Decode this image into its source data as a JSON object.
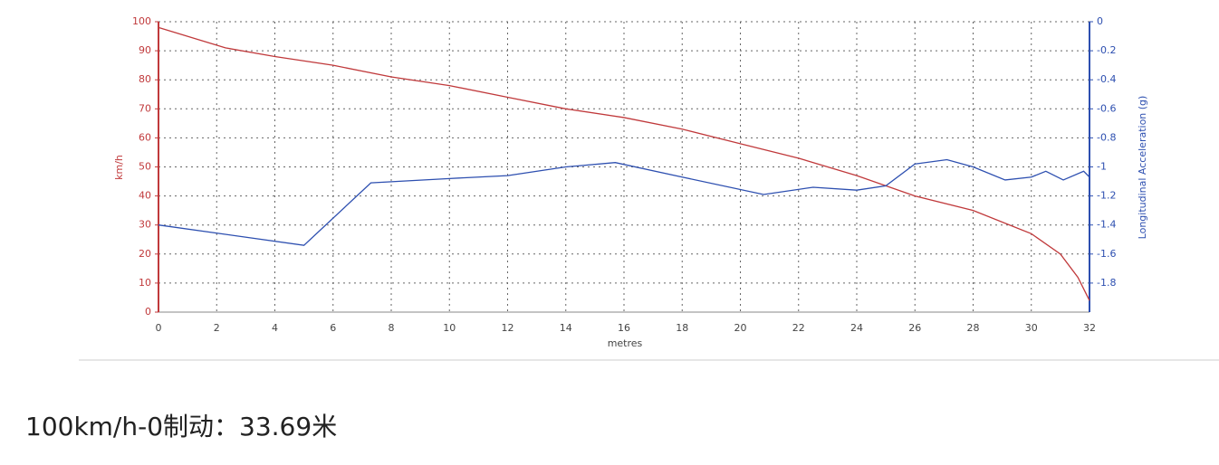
{
  "chart_data": {
    "type": "line",
    "xlabel": "metres",
    "ylabel": "km/h",
    "y2label": "Longitudinal Acceleration (g)",
    "xlim": [
      0,
      32
    ],
    "xticks": [
      0,
      2,
      4,
      6,
      8,
      10,
      12,
      14,
      16,
      18,
      20,
      22,
      24,
      26,
      28,
      30,
      32
    ],
    "ylim": [
      0,
      100
    ],
    "yticks": [
      0,
      10,
      20,
      30,
      40,
      50,
      60,
      70,
      80,
      90,
      100
    ],
    "y2lim": [
      -2,
      0
    ],
    "y2ticks": [
      0,
      -0.2,
      -0.4,
      -0.6,
      -0.8,
      -1,
      -1.2,
      -1.4,
      -1.6,
      -1.8
    ],
    "grid": true,
    "series": [
      {
        "name": "km/h",
        "color": "#c0393b",
        "x": [
          0,
          2.3,
          4,
          6,
          8,
          10,
          12,
          14,
          16,
          18,
          20,
          22,
          24,
          26,
          28,
          30,
          31,
          31.6,
          32
        ],
        "values": [
          98,
          91,
          88,
          85,
          81,
          78,
          74,
          70,
          67,
          63,
          58,
          53,
          47,
          40,
          35,
          27,
          20,
          12,
          4
        ]
      },
      {
        "name": "Longitudinal Acceleration (g)",
        "color": "#2d4fb0",
        "axis": "y2",
        "x": [
          0,
          5,
          7.3,
          10,
          12,
          14,
          15.7,
          18,
          20.8,
          22.5,
          24,
          25,
          26,
          27.1,
          28,
          29.1,
          30,
          30.5,
          31.1,
          31.8,
          32
        ],
        "values": [
          -1.4,
          -1.54,
          -1.11,
          -1.08,
          -1.06,
          -1.0,
          -0.97,
          -1.07,
          -1.19,
          -1.14,
          -1.16,
          -1.13,
          -0.98,
          -0.95,
          -1.0,
          -1.09,
          -1.07,
          -1.03,
          -1.09,
          -1.03,
          -1.07
        ]
      }
    ]
  },
  "caption": "100km/h-0制动：33.69米"
}
